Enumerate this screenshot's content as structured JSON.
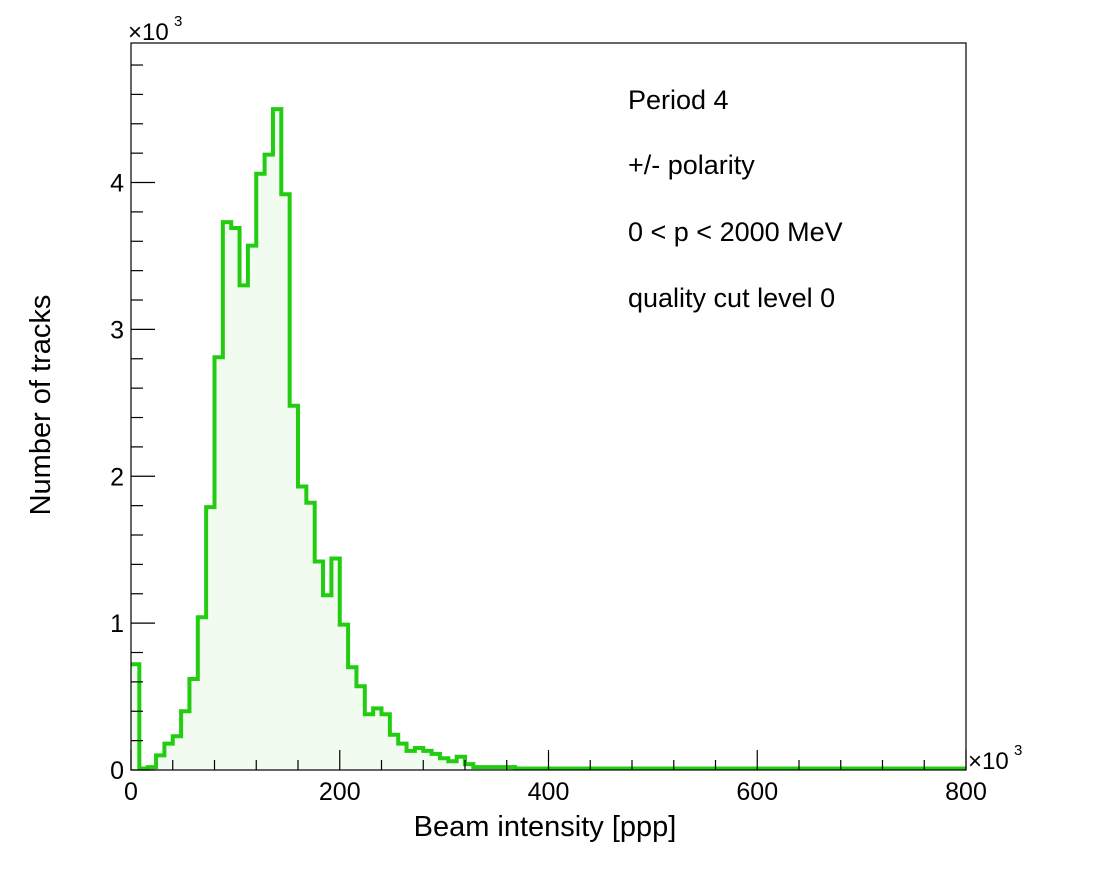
{
  "colors": {
    "line": "#22cc11",
    "fill": "#f2fbf0",
    "frame": "#000000",
    "background": "#ffffff"
  },
  "annotations": [
    "Period 4",
    "+/- polarity",
    "0 < p < 2000 MeV",
    "quality cut level 0"
  ],
  "chart_data": {
    "type": "histogram",
    "title": "",
    "xlabel": "Beam intensity [ppp]",
    "ylabel": "Number of tracks",
    "x_multiplier_label": "×10³",
    "y_multiplier_label": "×10³",
    "xlim": [
      0,
      800
    ],
    "ylim": [
      0,
      4.95
    ],
    "x_ticks": [
      0,
      200,
      400,
      600,
      800
    ],
    "x_tick_labels": [
      "0",
      "200",
      "400",
      "600",
      "800"
    ],
    "y_ticks": [
      0,
      1,
      2,
      3,
      4
    ],
    "y_tick_labels": [
      "0",
      "1",
      "2",
      "3",
      "4"
    ],
    "bin_width": 8,
    "x_units_note": "x and y values in units of 10^3",
    "bin_edges_start": 0,
    "values": [
      0.72,
      0.01,
      0.02,
      0.1,
      0.18,
      0.23,
      0.4,
      0.62,
      1.04,
      1.79,
      2.81,
      3.73,
      3.69,
      3.3,
      3.57,
      4.06,
      4.19,
      4.5,
      3.92,
      2.48,
      1.93,
      1.82,
      1.42,
      1.19,
      1.44,
      0.99,
      0.7,
      0.57,
      0.38,
      0.42,
      0.38,
      0.24,
      0.18,
      0.13,
      0.15,
      0.13,
      0.11,
      0.08,
      0.06,
      0.09,
      0.04,
      0.02,
      0.02,
      0.02,
      0.02,
      0.02,
      0.01,
      0.01,
      0.01,
      0.01,
      0.01,
      0.01,
      0.01,
      0.01,
      0.01,
      0.01,
      0.01,
      0.01,
      0.01,
      0.01,
      0.01,
      0.01,
      0.01,
      0.01,
      0.01,
      0.01,
      0.01,
      0.01,
      0.01,
      0.01,
      0.01,
      0.01,
      0.01,
      0.01,
      0.01,
      0.01,
      0.01,
      0.01,
      0.01,
      0.01,
      0.01,
      0.01,
      0.01,
      0.01,
      0.01,
      0.01,
      0.01,
      0.01,
      0.01,
      0.01,
      0.01,
      0.01,
      0.01,
      0.01,
      0.01,
      0.01,
      0.01,
      0.01,
      0.01,
      0.01
    ],
    "grid": false,
    "legend": "none"
  }
}
